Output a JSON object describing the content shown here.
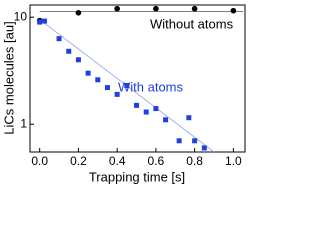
{
  "chart_data": {
    "type": "scatter",
    "x_label": "Trapping time [s]",
    "y_label": "LiCs molecules [au]",
    "log_y": true,
    "xlim": [
      -0.05,
      1.06
    ],
    "ylim": [
      0.55,
      13
    ],
    "xticks": [
      {
        "value": 0,
        "label": "0.0"
      },
      {
        "value": 0.2,
        "label": "0.2"
      },
      {
        "value": 0.4,
        "label": "0.4"
      },
      {
        "value": 0.6,
        "label": "0.6"
      },
      {
        "value": 0.8,
        "label": "0.8"
      },
      {
        "value": 1,
        "label": "1.0"
      }
    ],
    "yticks": [
      1,
      10
    ],
    "series": [
      {
        "name": "Without atoms",
        "color": "#000000",
        "marker": "circle",
        "x": [
          0.0,
          0.2,
          0.4,
          0.6,
          0.8,
          1.0
        ],
        "values": [
          9.3,
          11,
          12,
          12,
          12,
          11.5
        ],
        "fit_x": [
          0.0,
          1.05
        ],
        "fit_values": [
          11.3,
          11.3
        ]
      },
      {
        "name": "With atoms",
        "color": "#1f3fe0",
        "marker": "square",
        "x": [
          0.0,
          0.025,
          0.1,
          0.15,
          0.2,
          0.25,
          0.3,
          0.35,
          0.4,
          0.45,
          0.5,
          0.55,
          0.6,
          0.65,
          0.72,
          0.77,
          0.8,
          0.85
        ],
        "values": [
          9.0,
          9.2,
          6.3,
          4.8,
          4.0,
          3.0,
          2.6,
          2.2,
          1.9,
          2.3,
          1.5,
          1.3,
          1.4,
          1.1,
          0.7,
          1.15,
          0.7,
          0.6
        ],
        "fit_x": [
          0.0,
          0.9
        ],
        "fit_values": [
          9.5,
          0.55
        ]
      }
    ]
  }
}
